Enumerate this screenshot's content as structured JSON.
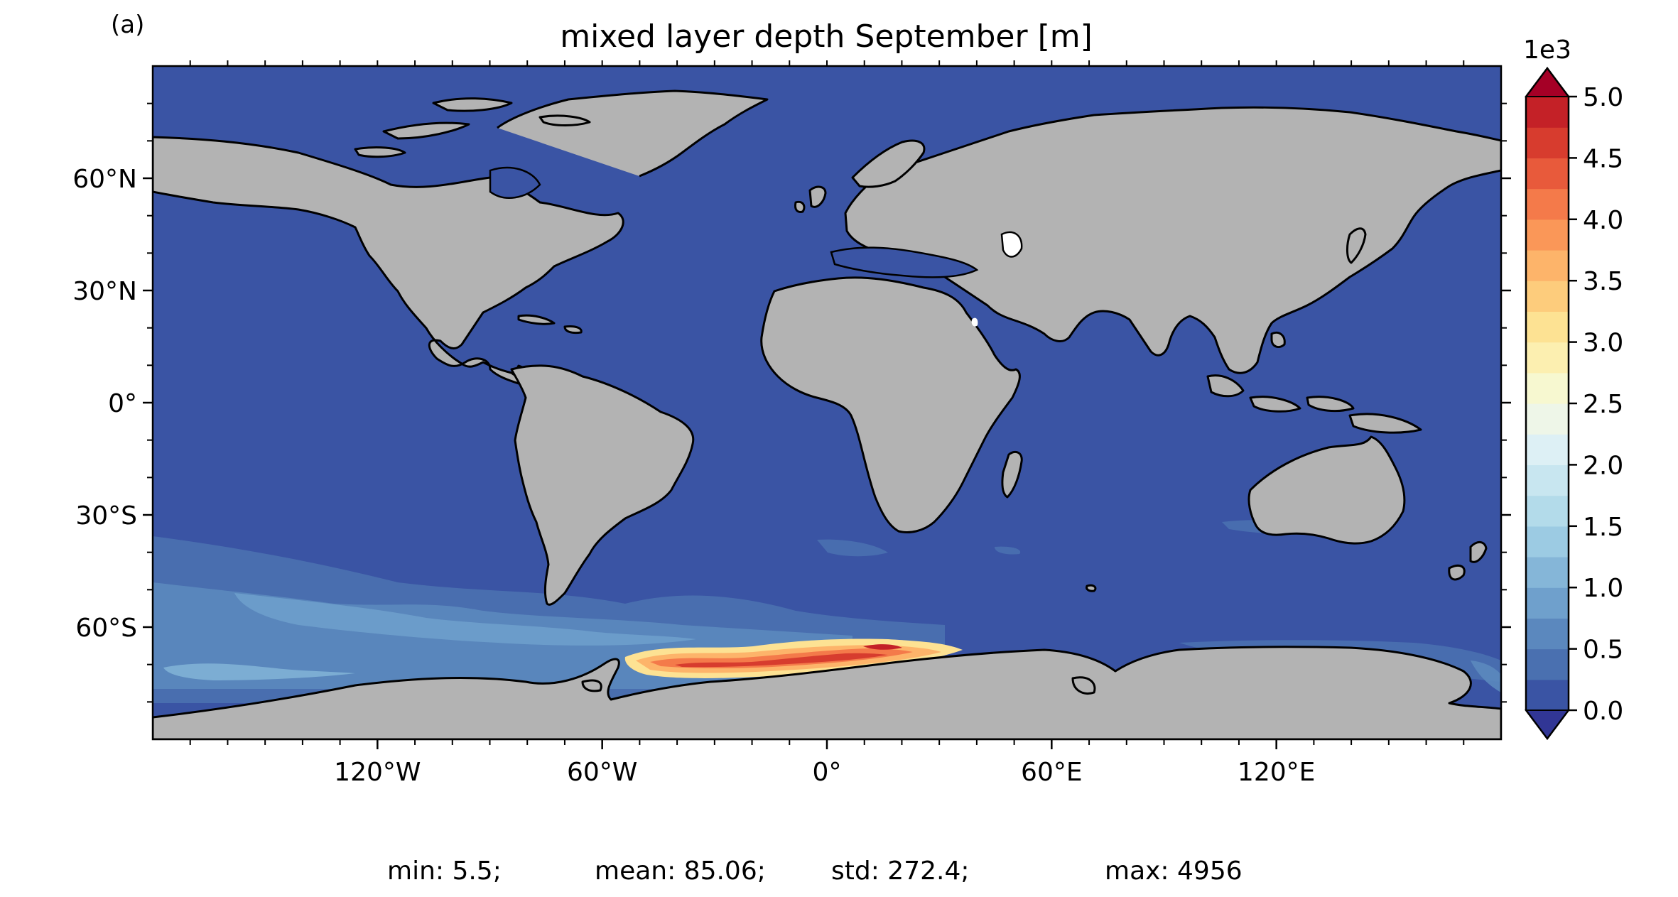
{
  "figure": {
    "panel_label": "(a)",
    "title": "mixed layer depth September [m]",
    "stats": {
      "min": "min: 5.5;",
      "mean": "mean: 85.06;",
      "std": "std: 272.4;",
      "max": "max: 4956"
    }
  },
  "map": {
    "projection": "PlateCarree",
    "lon_range": [
      -180,
      180
    ],
    "lat_range": [
      -90,
      90
    ],
    "ocean_color": "#3a54a4",
    "land_color": "#b3b3b3",
    "coastline_color": "#000000",
    "lat_ticks": [
      {
        "value": 60,
        "label": "60°N"
      },
      {
        "value": 30,
        "label": "30°N"
      },
      {
        "value": 0,
        "label": "0°"
      },
      {
        "value": -30,
        "label": "30°S"
      },
      {
        "value": -60,
        "label": "60°S"
      }
    ],
    "lon_ticks": [
      {
        "value": -120,
        "label": "120°W"
      },
      {
        "value": -60,
        "label": "60°W"
      },
      {
        "value": 0,
        "label": "0°"
      },
      {
        "value": 60,
        "label": "60°E"
      },
      {
        "value": 120,
        "label": "120°E"
      }
    ]
  },
  "colorbar": {
    "exponent_label": "1e3",
    "range": [
      0,
      5
    ],
    "extend": "both",
    "ticks": [
      {
        "value": 0.0,
        "label": "0.0"
      },
      {
        "value": 0.5,
        "label": "0.5"
      },
      {
        "value": 1.0,
        "label": "1.0"
      },
      {
        "value": 1.5,
        "label": "1.5"
      },
      {
        "value": 2.0,
        "label": "2.0"
      },
      {
        "value": 2.5,
        "label": "2.5"
      },
      {
        "value": 3.0,
        "label": "3.0"
      },
      {
        "value": 3.5,
        "label": "3.5"
      },
      {
        "value": 4.0,
        "label": "4.0"
      },
      {
        "value": 4.5,
        "label": "4.5"
      },
      {
        "value": 5.0,
        "label": "5.0"
      }
    ],
    "under_color": "#313695",
    "over_color": "#a50026",
    "colors": [
      "#3a54a4",
      "#4a70b0",
      "#5b88be",
      "#6fa0cc",
      "#85b6d8",
      "#9ccbe3",
      "#b3dbea",
      "#c8e6f0",
      "#ddf0f5",
      "#eef6e8",
      "#f7f8d0",
      "#fcefb0",
      "#fde293",
      "#fdcc7c",
      "#fdb46a",
      "#fa9758",
      "#f47a4a",
      "#e85a3b",
      "#d73c2e",
      "#c42127"
    ]
  }
}
